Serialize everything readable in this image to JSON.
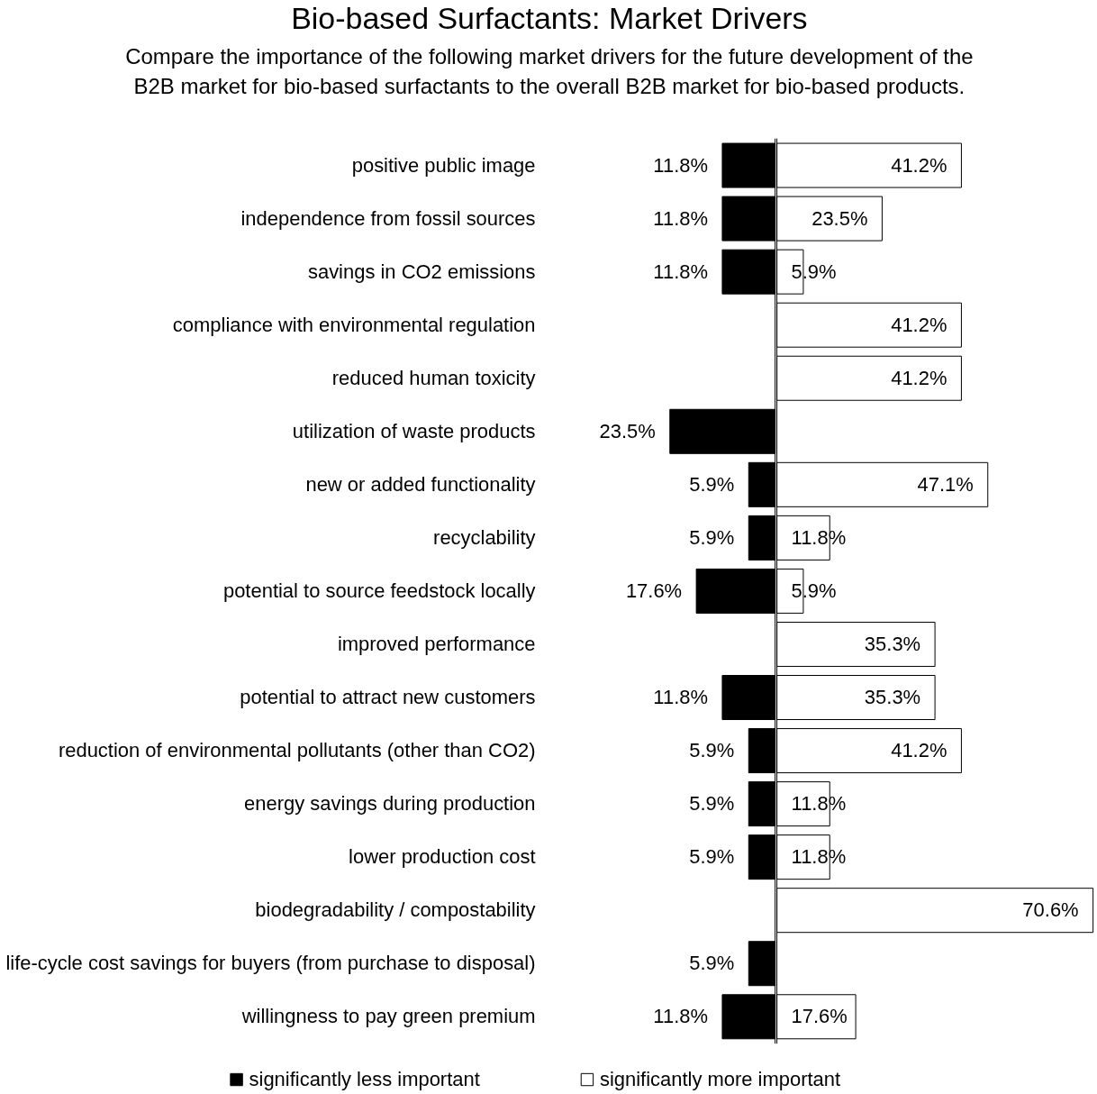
{
  "chart_data": [
    {
      "type": "bar",
      "orientation": "horizontal",
      "title": "Bio-based Surfactants: Market Drivers",
      "subtitle": "Compare the importance of the following market drivers for the future development of the B2B market for bio-based surfactants to the overall B2B market for bio-based products.",
      "categories": [
        "positive public image",
        "independence from fossil sources",
        "savings in CO2 emissions",
        "compliance with environmental regulation",
        "reduced human toxicity",
        "utilization of waste products",
        "new or added functionality",
        "recyclability",
        "potential to source feedstock locally",
        "improved performance",
        "potential to attract new customers",
        "reduction of environmental pollutants (other than CO2)",
        "energy savings during production",
        "lower production cost",
        "biodegradability / compostability",
        "life-cycle cost savings for buyers (from purchase to disposal)",
        "willingness to pay green premium"
      ],
      "series": [
        {
          "name": "significantly less important",
          "color": "#000000",
          "values": [
            11.8,
            11.8,
            11.8,
            null,
            null,
            23.5,
            5.9,
            5.9,
            17.6,
            null,
            11.8,
            5.9,
            5.9,
            5.9,
            null,
            5.9,
            11.8
          ],
          "value_labels": [
            "11.8%",
            "11.8%",
            "11.8%",
            null,
            null,
            "23.5%",
            "5.9%",
            "5.9%",
            "17.6%",
            null,
            "11.8%",
            "5.9%",
            "5.9%",
            "5.9%",
            null,
            "5.9%",
            "11.8%"
          ]
        }
      ],
      "xlim": [
        23.5,
        0
      ],
      "tick_labels": "y",
      "legend": "bottom"
    },
    {
      "type": "bar",
      "orientation": "horizontal",
      "categories": [
        null,
        null,
        null,
        null,
        null,
        null,
        null,
        null,
        null,
        null,
        null,
        null,
        null,
        null,
        null,
        null,
        null
      ],
      "series": [
        {
          "name": "significantly more important",
          "color": "#ffffff",
          "values": [
            41.2,
            23.5,
            5.9,
            41.2,
            41.2,
            null,
            47.1,
            11.8,
            5.9,
            35.3,
            35.3,
            41.2,
            11.8,
            11.8,
            70.6,
            null,
            17.6
          ],
          "value_labels": [
            "41.2%",
            "23.5%",
            "5.9%",
            "41.2%",
            "41.2%",
            null,
            "47.1%",
            "11.8%",
            "5.9%",
            "35.3%",
            "35.3%",
            "41.2%",
            "11.8%",
            "11.8%",
            "70.6%",
            null,
            "17.6%"
          ]
        }
      ],
      "tick_labels": false,
      "legend": "bottom"
    }
  ]
}
